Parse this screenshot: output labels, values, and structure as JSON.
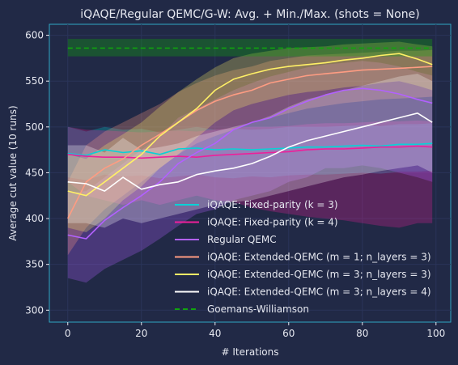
{
  "chart_data": {
    "type": "line",
    "title": "iQAQE/Regular QEMC/G-W: Avg. + Min./Max. (shots = None)",
    "xlabel": "# Iterations",
    "ylabel": "Average cut value (10 runs)",
    "xlim": [
      -5,
      104
    ],
    "ylim": [
      287,
      612
    ],
    "xticks": [
      0,
      20,
      40,
      60,
      80,
      100
    ],
    "yticks": [
      300,
      350,
      400,
      450,
      500,
      550,
      600
    ],
    "grid": true,
    "legend_position": "lower-right",
    "series": [
      {
        "name": "iQAQE: Fixed-parity (k = 3)",
        "color": "#08d2d6",
        "x": [
          0,
          5,
          10,
          15,
          20,
          25,
          30,
          35,
          40,
          45,
          50,
          55,
          60,
          65,
          70,
          75,
          80,
          85,
          90,
          95,
          99
        ],
        "mean": [
          471,
          469,
          475,
          472,
          474,
          470,
          476,
          477,
          475,
          476,
          475,
          476,
          477,
          478,
          478,
          479,
          480,
          479,
          481,
          481,
          482
        ],
        "min": [
          445,
          442,
          448,
          446,
          447,
          444,
          446,
          448,
          445,
          444,
          446,
          445,
          447,
          448,
          448,
          449,
          450,
          449,
          451,
          451,
          452
        ],
        "max": [
          500,
          495,
          500,
          497,
          498,
          494,
          497,
          500,
          497,
          498,
          497,
          498,
          500,
          500,
          500,
          501,
          502,
          501,
          503,
          503,
          504
        ]
      },
      {
        "name": "iQAQE: Fixed-parity (k = 4)",
        "color": "#ee1f9a",
        "x": [
          0,
          5,
          10,
          15,
          20,
          25,
          30,
          35,
          40,
          45,
          50,
          55,
          60,
          65,
          70,
          75,
          80,
          85,
          90,
          95,
          99
        ],
        "mean": [
          470,
          468,
          467,
          467,
          466,
          467,
          468,
          467,
          469,
          470,
          471,
          472,
          473,
          475,
          476,
          476,
          477,
          478,
          478,
          479,
          478
        ],
        "min": [
          440,
          425,
          420,
          415,
          420,
          415,
          420,
          425,
          420,
          418,
          412,
          408,
          405,
          402,
          400,
          398,
          395,
          392,
          390,
          395,
          395
        ],
        "max": [
          500,
          497,
          496,
          495,
          494,
          495,
          496,
          495,
          497,
          499,
          500,
          500,
          501,
          503,
          504,
          504,
          505,
          506,
          506,
          507,
          506
        ]
      },
      {
        "name": "Regular QEMC",
        "color": "#b261ff",
        "x": [
          0,
          5,
          10,
          15,
          20,
          25,
          30,
          35,
          40,
          45,
          50,
          55,
          60,
          65,
          70,
          75,
          80,
          85,
          90,
          95,
          99
        ],
        "mean": [
          382,
          378,
          398,
          412,
          425,
          440,
          460,
          472,
          482,
          497,
          505,
          510,
          520,
          528,
          535,
          540,
          542,
          540,
          536,
          530,
          526
        ],
        "min": [
          335,
          330,
          345,
          355,
          365,
          378,
          392,
          405,
          410,
          420,
          425,
          430,
          440,
          445,
          455,
          455,
          458,
          455,
          450,
          445,
          440
        ],
        "max": [
          428,
          430,
          445,
          460,
          475,
          490,
          510,
          520,
          530,
          540,
          548,
          555,
          560,
          565,
          568,
          570,
          572,
          570,
          566,
          560,
          556
        ]
      },
      {
        "name": "iQAQE: Extended-QEMC (m = 1; n_layers = 3)",
        "color": "#fe9c82",
        "x": [
          0,
          5,
          10,
          15,
          20,
          25,
          30,
          35,
          40,
          45,
          50,
          55,
          60,
          65,
          70,
          75,
          80,
          85,
          90,
          95,
          99
        ],
        "mean": [
          400,
          440,
          455,
          465,
          480,
          492,
          505,
          518,
          528,
          535,
          540,
          548,
          552,
          556,
          558,
          560,
          562,
          563,
          564,
          565,
          566
        ],
        "min": [
          360,
          390,
          410,
          425,
          440,
          455,
          470,
          482,
          490,
          497,
          505,
          510,
          515,
          520,
          523,
          526,
          528,
          530,
          531,
          532,
          533
        ],
        "max": [
          440,
          480,
          495,
          505,
          515,
          525,
          538,
          548,
          556,
          562,
          566,
          572,
          575,
          578,
          579,
          580,
          581,
          582,
          583,
          583,
          584
        ]
      },
      {
        "name": "iQAQE: Extended-QEMC (m = 3; n_layers = 3)",
        "color": "#fff066",
        "x": [
          0,
          5,
          10,
          15,
          20,
          25,
          30,
          35,
          40,
          45,
          50,
          55,
          60,
          65,
          70,
          75,
          80,
          85,
          90,
          95,
          99
        ],
        "mean": [
          430,
          425,
          440,
          455,
          470,
          490,
          505,
          520,
          540,
          552,
          558,
          563,
          566,
          568,
          570,
          573,
          575,
          578,
          580,
          574,
          568
        ],
        "min": [
          390,
          385,
          400,
          420,
          435,
          455,
          470,
          488,
          505,
          518,
          525,
          530,
          535,
          538,
          540,
          543,
          545,
          548,
          550,
          545,
          540
        ],
        "max": [
          470,
          465,
          480,
          492,
          505,
          522,
          538,
          552,
          565,
          575,
          580,
          583,
          586,
          587,
          588,
          590,
          591,
          592,
          593,
          590,
          588
        ]
      },
      {
        "name": "iQAQE: Extended-QEMC (m = 3; n_layers = 4)",
        "color": "#ffffff",
        "x": [
          0,
          5,
          10,
          15,
          20,
          25,
          30,
          35,
          40,
          45,
          50,
          55,
          60,
          65,
          70,
          75,
          80,
          85,
          90,
          95,
          99
        ],
        "mean": [
          440,
          438,
          430,
          445,
          432,
          437,
          440,
          448,
          452,
          455,
          460,
          468,
          478,
          485,
          490,
          495,
          500,
          505,
          510,
          515,
          505
        ],
        "min": [
          395,
          395,
          390,
          400,
          395,
          400,
          405,
          410,
          415,
          418,
          420,
          425,
          430,
          435,
          440,
          445,
          448,
          452,
          455,
          458,
          450
        ],
        "max": [
          480,
          480,
          472,
          488,
          475,
          478,
          482,
          490,
          495,
          500,
          505,
          512,
          522,
          530,
          535,
          540,
          545,
          550,
          555,
          558,
          550
        ]
      },
      {
        "name": "Goemans-Williamson",
        "color": "#11a40e",
        "dashed": true,
        "x": [
          0,
          99
        ],
        "mean": [
          586,
          586
        ],
        "min": [
          577,
          577
        ],
        "max": [
          596,
          596
        ]
      }
    ]
  }
}
